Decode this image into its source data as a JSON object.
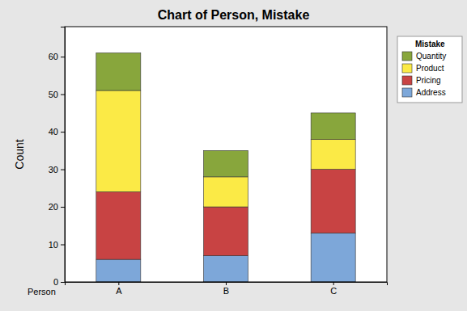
{
  "chart_data": {
    "type": "bar",
    "stacked": true,
    "title": "Chart of Person, Mistake",
    "x_label": "Person",
    "y_label": "Count",
    "legend_title": "Mistake",
    "legend": "right",
    "categories": [
      "A",
      "B",
      "C"
    ],
    "series": [
      {
        "name": "Address",
        "color": "#7da7d9",
        "values": [
          6,
          7,
          13
        ]
      },
      {
        "name": "Pricing",
        "color": "#c84343",
        "values": [
          18,
          13,
          17
        ]
      },
      {
        "name": "Product",
        "color": "#fbea46",
        "values": [
          27,
          8,
          8
        ]
      },
      {
        "name": "Quantity",
        "color": "#88a63c",
        "values": [
          10,
          7,
          7
        ]
      }
    ],
    "ylim": [
      0,
      68
    ],
    "yticks": [
      0,
      10,
      20,
      30,
      40,
      50,
      60
    ]
  }
}
